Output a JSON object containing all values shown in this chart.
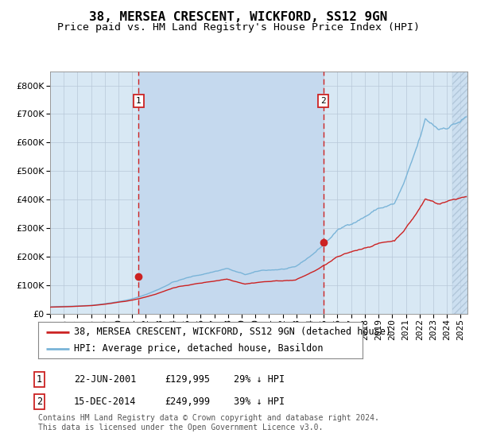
{
  "title": "38, MERSEA CRESCENT, WICKFORD, SS12 9GN",
  "subtitle": "Price paid vs. HM Land Registry's House Price Index (HPI)",
  "legend_line1": "38, MERSEA CRESCENT, WICKFORD, SS12 9GN (detached house)",
  "legend_line2": "HPI: Average price, detached house, Basildon",
  "footer1": "Contains HM Land Registry data © Crown copyright and database right 2024.",
  "footer2": "This data is licensed under the Open Government Licence v3.0.",
  "sale1_label": "1",
  "sale1_date": "22-JUN-2001",
  "sale1_price": "£129,995",
  "sale1_hpi": "29% ↓ HPI",
  "sale2_label": "2",
  "sale2_date": "15-DEC-2014",
  "sale2_price": "£249,999",
  "sale2_hpi": "39% ↓ HPI",
  "sale1_x": 2001.47,
  "sale1_y": 129995,
  "sale2_x": 2014.96,
  "sale2_y": 249999,
  "ylim": [
    0,
    850000
  ],
  "yticks": [
    0,
    100000,
    200000,
    300000,
    400000,
    500000,
    600000,
    700000,
    800000
  ],
  "hpi_color": "#7ab4d8",
  "price_color": "#cc2222",
  "bg_color": "#d8e8f4",
  "plot_bg": "#ffffff",
  "shade_color": "#c5d9ee",
  "shade_start": 2001.47,
  "shade_end": 2014.96,
  "last_shade_start": 2024.42,
  "xlim_start": 1995.0,
  "xlim_end": 2025.5,
  "grid_color": "#b8c8d8",
  "title_fontsize": 11.5,
  "subtitle_fontsize": 9.5,
  "axis_fontsize": 8,
  "legend_fontsize": 8.5,
  "table_fontsize": 8.5,
  "footer_fontsize": 7
}
